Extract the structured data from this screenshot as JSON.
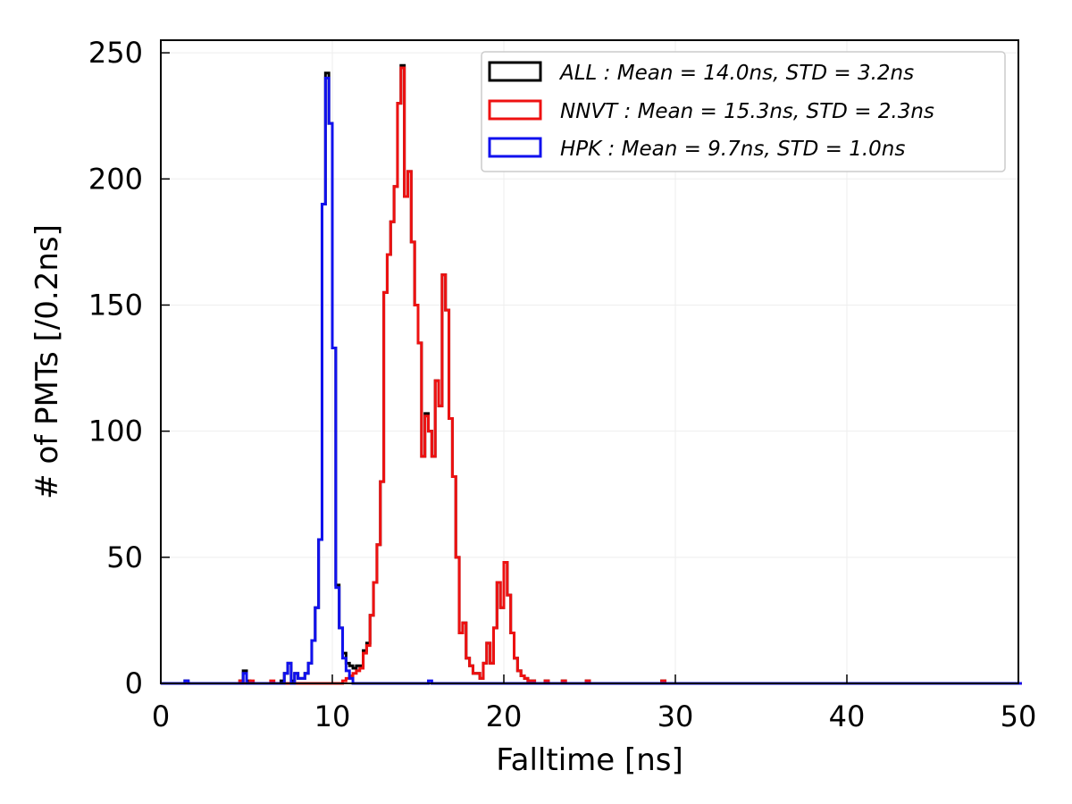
{
  "chart_data": {
    "type": "histogram-step",
    "xlabel": "Falltime [ns]",
    "ylabel": "# of PMTs [/0.2ns]",
    "xlim": [
      0,
      50
    ],
    "ylim": [
      0,
      255
    ],
    "xticks": [
      0,
      10,
      20,
      30,
      40,
      50
    ],
    "yticks": [
      0,
      50,
      100,
      150,
      200,
      250
    ],
    "bin_width": 0.2,
    "grid": true,
    "legend_position": "top-right",
    "series": [
      {
        "name": "ALL",
        "legend_label": "ALL : Mean = 14.0ns, STD = 3.2ns",
        "color": "#000000",
        "points": [
          [
            1.4,
            1
          ],
          [
            4.6,
            1
          ],
          [
            4.8,
            5
          ],
          [
            5.0,
            1
          ],
          [
            7.0,
            1
          ],
          [
            7.2,
            4
          ],
          [
            7.4,
            8
          ],
          [
            7.6,
            1
          ],
          [
            7.8,
            4
          ],
          [
            8.0,
            2
          ],
          [
            8.2,
            2
          ],
          [
            8.4,
            4
          ],
          [
            8.6,
            8
          ],
          [
            8.8,
            17
          ],
          [
            9.0,
            30
          ],
          [
            9.2,
            57
          ],
          [
            9.4,
            190
          ],
          [
            9.6,
            242
          ],
          [
            9.8,
            222
          ],
          [
            10.0,
            133
          ],
          [
            10.2,
            39
          ],
          [
            10.4,
            22
          ],
          [
            10.6,
            12
          ],
          [
            10.8,
            8
          ],
          [
            11.0,
            7
          ],
          [
            11.2,
            6
          ],
          [
            11.4,
            7
          ],
          [
            11.6,
            7
          ],
          [
            11.8,
            13
          ],
          [
            12.0,
            16
          ],
          [
            12.2,
            27
          ],
          [
            12.4,
            40
          ],
          [
            12.6,
            55
          ],
          [
            12.8,
            80
          ],
          [
            13.0,
            155
          ],
          [
            13.2,
            170
          ],
          [
            13.4,
            183
          ],
          [
            13.6,
            197
          ],
          [
            13.8,
            230
          ],
          [
            14.0,
            245
          ],
          [
            14.2,
            193
          ],
          [
            14.4,
            203
          ],
          [
            14.6,
            175
          ],
          [
            14.8,
            150
          ],
          [
            15.0,
            135
          ],
          [
            15.2,
            90
          ],
          [
            15.4,
            107
          ],
          [
            15.6,
            100
          ],
          [
            15.8,
            90
          ],
          [
            16.0,
            120
          ],
          [
            16.2,
            110
          ],
          [
            16.4,
            162
          ],
          [
            16.6,
            148
          ],
          [
            16.8,
            105
          ],
          [
            17.0,
            82
          ],
          [
            17.2,
            50
          ],
          [
            17.4,
            20
          ],
          [
            17.6,
            24
          ],
          [
            17.8,
            10
          ],
          [
            18.0,
            7
          ],
          [
            18.2,
            4
          ],
          [
            18.4,
            4
          ],
          [
            18.6,
            2
          ],
          [
            18.8,
            8
          ],
          [
            19.0,
            16
          ],
          [
            19.2,
            8
          ],
          [
            19.4,
            22
          ],
          [
            19.6,
            40
          ],
          [
            19.8,
            30
          ],
          [
            20.0,
            48
          ],
          [
            20.2,
            35
          ],
          [
            20.4,
            20
          ],
          [
            20.6,
            10
          ],
          [
            20.8,
            5
          ],
          [
            21.0,
            3
          ],
          [
            21.2,
            2
          ],
          [
            21.4,
            1
          ],
          [
            21.6,
            1
          ],
          [
            22.4,
            1
          ],
          [
            23.4,
            1
          ],
          [
            24.8,
            1
          ],
          [
            29.2,
            1
          ]
        ]
      },
      {
        "name": "NNVT",
        "legend_label": "NNVT : Mean = 15.3ns, STD = 2.3ns",
        "color": "#ee1111",
        "points": [
          [
            4.6,
            1
          ],
          [
            5.2,
            1
          ],
          [
            6.4,
            1
          ],
          [
            10.6,
            1
          ],
          [
            10.8,
            2
          ],
          [
            11.0,
            3
          ],
          [
            11.2,
            4
          ],
          [
            11.4,
            5
          ],
          [
            11.6,
            6
          ],
          [
            11.8,
            12
          ],
          [
            12.0,
            15
          ],
          [
            12.2,
            27
          ],
          [
            12.4,
            40
          ],
          [
            12.6,
            55
          ],
          [
            12.8,
            80
          ],
          [
            13.0,
            155
          ],
          [
            13.2,
            170
          ],
          [
            13.4,
            183
          ],
          [
            13.6,
            197
          ],
          [
            13.8,
            230
          ],
          [
            14.0,
            244
          ],
          [
            14.2,
            193
          ],
          [
            14.4,
            203
          ],
          [
            14.6,
            175
          ],
          [
            14.8,
            150
          ],
          [
            15.0,
            135
          ],
          [
            15.2,
            90
          ],
          [
            15.4,
            106
          ],
          [
            15.6,
            100
          ],
          [
            15.8,
            90
          ],
          [
            16.0,
            120
          ],
          [
            16.2,
            110
          ],
          [
            16.4,
            162
          ],
          [
            16.6,
            148
          ],
          [
            16.8,
            105
          ],
          [
            17.0,
            82
          ],
          [
            17.2,
            50
          ],
          [
            17.4,
            20
          ],
          [
            17.6,
            24
          ],
          [
            17.8,
            10
          ],
          [
            18.0,
            7
          ],
          [
            18.2,
            4
          ],
          [
            18.4,
            4
          ],
          [
            18.6,
            2
          ],
          [
            18.8,
            8
          ],
          [
            19.0,
            16
          ],
          [
            19.2,
            8
          ],
          [
            19.4,
            22
          ],
          [
            19.6,
            40
          ],
          [
            19.8,
            30
          ],
          [
            20.0,
            48
          ],
          [
            20.2,
            35
          ],
          [
            20.4,
            20
          ],
          [
            20.6,
            10
          ],
          [
            20.8,
            5
          ],
          [
            21.0,
            3
          ],
          [
            21.2,
            2
          ],
          [
            21.4,
            1
          ],
          [
            21.6,
            1
          ],
          [
            22.4,
            1
          ],
          [
            23.4,
            1
          ],
          [
            24.8,
            1
          ],
          [
            29.2,
            1
          ]
        ]
      },
      {
        "name": "HPK",
        "legend_label": "HPK : Mean = 9.7ns, STD = 1.0ns",
        "color": "#1111ee",
        "points": [
          [
            1.4,
            1
          ],
          [
            4.8,
            4
          ],
          [
            7.2,
            4
          ],
          [
            7.4,
            8
          ],
          [
            7.8,
            4
          ],
          [
            8.0,
            2
          ],
          [
            8.2,
            2
          ],
          [
            8.4,
            4
          ],
          [
            8.6,
            8
          ],
          [
            8.8,
            17
          ],
          [
            9.0,
            30
          ],
          [
            9.2,
            57
          ],
          [
            9.4,
            190
          ],
          [
            9.6,
            240
          ],
          [
            9.8,
            222
          ],
          [
            10.0,
            133
          ],
          [
            10.2,
            38
          ],
          [
            10.4,
            22
          ],
          [
            10.6,
            10
          ],
          [
            10.8,
            5
          ],
          [
            11.0,
            2
          ],
          [
            15.6,
            1
          ]
        ]
      }
    ]
  }
}
